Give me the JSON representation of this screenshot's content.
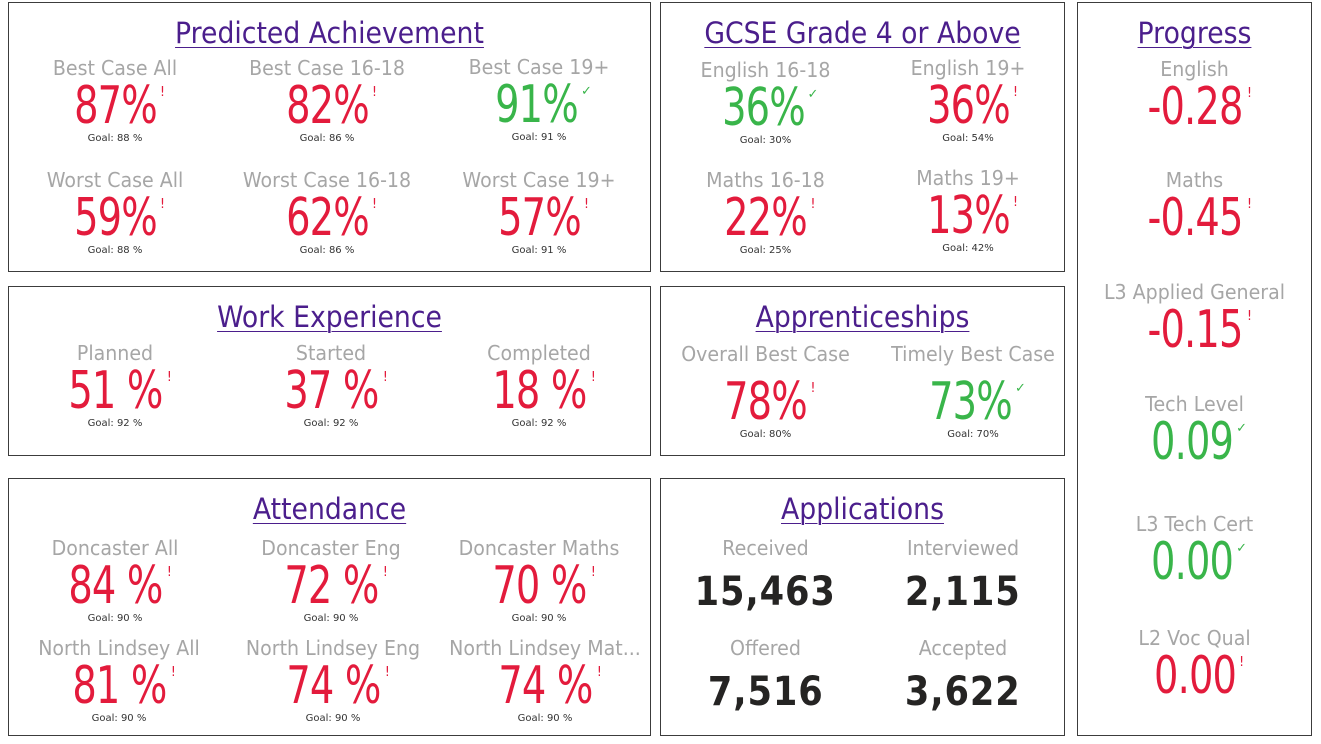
{
  "colors": {
    "title": "#4b1e8c",
    "bad": "#e31b3c",
    "good": "#39b54a",
    "label": "#a6a6a6",
    "value": "#252423"
  },
  "predicted": {
    "title": "Predicted Achievement",
    "items": [
      {
        "label": "Best Case All",
        "value": "87%",
        "mark": "!",
        "goal": "Goal: 88 %",
        "status": "bad"
      },
      {
        "label": "Best Case 16-18",
        "value": "82%",
        "mark": "!",
        "goal": "Goal: 86 %",
        "status": "bad"
      },
      {
        "label": "Best Case 19+",
        "value": "91%",
        "mark": "✓",
        "goal": "Goal: 91 %",
        "status": "good"
      },
      {
        "label": "Worst Case All",
        "value": "59%",
        "mark": "!",
        "goal": "Goal: 88 %",
        "status": "bad"
      },
      {
        "label": "Worst Case 16-18",
        "value": "62%",
        "mark": "!",
        "goal": "Goal: 86 %",
        "status": "bad"
      },
      {
        "label": "Worst Case 19+",
        "value": "57%",
        "mark": "!",
        "goal": "Goal: 91 %",
        "status": "bad"
      }
    ]
  },
  "gcse": {
    "title": "GCSE Grade 4 or Above",
    "items": [
      {
        "label": "English 16-18",
        "value": "36%",
        "mark": "✓",
        "goal": "Goal: 30%",
        "status": "good"
      },
      {
        "label": "English 19+",
        "value": "36%",
        "mark": "!",
        "goal": "Goal: 54%",
        "status": "bad"
      },
      {
        "label": "Maths 16-18",
        "value": "22%",
        "mark": "!",
        "goal": "Goal: 25%",
        "status": "bad"
      },
      {
        "label": "Maths 19+",
        "value": "13%",
        "mark": "!",
        "goal": "Goal: 42%",
        "status": "bad"
      }
    ]
  },
  "progress": {
    "title": "Progress",
    "items": [
      {
        "label": "English",
        "value": "-0.28",
        "mark": "!",
        "status": "bad"
      },
      {
        "label": "Maths",
        "value": "-0.45",
        "mark": "!",
        "status": "bad"
      },
      {
        "label": "L3 Applied General",
        "value": "-0.15",
        "mark": "!",
        "status": "bad"
      },
      {
        "label": "Tech Level",
        "value": "0.09",
        "mark": "✓",
        "status": "good"
      },
      {
        "label": "L3 Tech Cert",
        "value": "0.00",
        "mark": "✓",
        "status": "good"
      },
      {
        "label": "L2 Voc Qual",
        "value": "0.00",
        "mark": "!",
        "status": "bad"
      }
    ]
  },
  "work": {
    "title": "Work Experience",
    "items": [
      {
        "label": "Planned",
        "value": "51 %",
        "mark": "!",
        "goal": "Goal: 92 %",
        "status": "bad"
      },
      {
        "label": "Started",
        "value": "37 %",
        "mark": "!",
        "goal": "Goal: 92 %",
        "status": "bad"
      },
      {
        "label": "Completed",
        "value": "18 %",
        "mark": "!",
        "goal": "Goal: 92 %",
        "status": "bad"
      }
    ]
  },
  "apprenticeships": {
    "title": "Apprenticeships",
    "items": [
      {
        "label": "Overall Best Case",
        "value": "78%",
        "mark": "!",
        "goal": "Goal: 80%",
        "status": "bad"
      },
      {
        "label": "Timely Best Case",
        "value": "73%",
        "mark": "✓",
        "goal": "Goal: 70%",
        "status": "good"
      }
    ]
  },
  "attendance": {
    "title": "Attendance",
    "items": [
      {
        "label": "Doncaster All",
        "value": "84 %",
        "mark": "!",
        "goal": "Goal: 90 %",
        "status": "bad"
      },
      {
        "label": "Doncaster Eng",
        "value": "72 %",
        "mark": "!",
        "goal": "Goal: 90 %",
        "status": "bad"
      },
      {
        "label": "Doncaster Maths",
        "value": "70 %",
        "mark": "!",
        "goal": "Goal: 90 %",
        "status": "bad"
      },
      {
        "label": "North Lindsey All",
        "value": "81 %",
        "mark": "!",
        "goal": "Goal: 90 %",
        "status": "bad"
      },
      {
        "label": "North Lindsey Eng",
        "value": "74 %",
        "mark": "!",
        "goal": "Goal: 90 %",
        "status": "bad"
      },
      {
        "label": "North Lindsey Mat...",
        "value": "74 %",
        "mark": "!",
        "goal": "Goal: 90 %",
        "status": "bad"
      }
    ]
  },
  "applications": {
    "title": "Applications",
    "items": [
      {
        "label": "Received",
        "value": "15,463"
      },
      {
        "label": "Interviewed",
        "value": "2,115"
      },
      {
        "label": "Offered",
        "value": "7,516"
      },
      {
        "label": "Accepted",
        "value": "3,622"
      }
    ]
  }
}
